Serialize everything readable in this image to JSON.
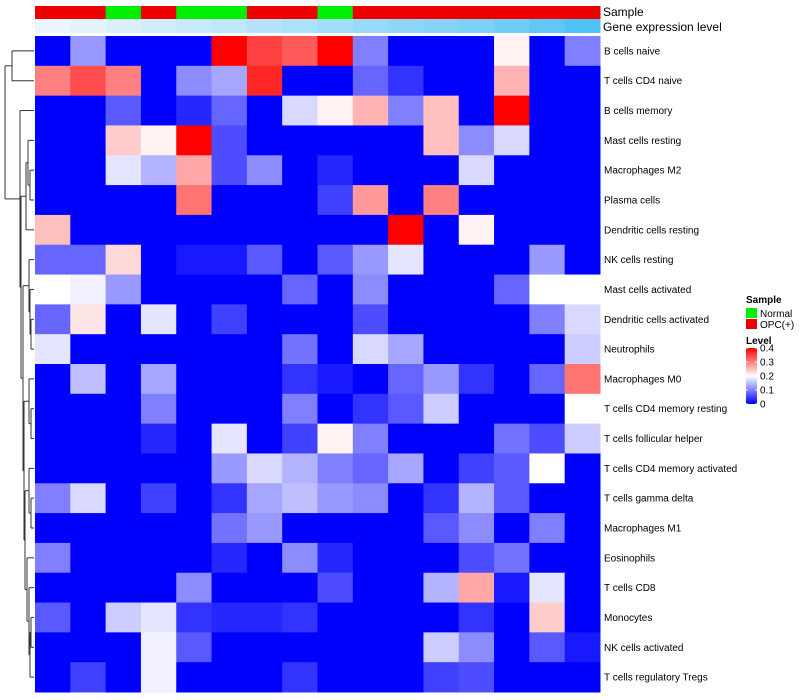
{
  "chart_data": {
    "type": "heatmap",
    "title": "",
    "annotation_labels": [
      "Sample",
      "Gene expression level"
    ],
    "rows": [
      "B cells naive",
      "T cells CD4 naive",
      "B cells memory",
      "Mast cells resting",
      "Macrophages M2",
      "Plasma cells",
      "Dendritic cells resting",
      "NK cells resting",
      "Mast cells activated",
      "Dendritic cells activated",
      "Neutrophils",
      "Macrophages M0",
      "T cells CD4 memory resting",
      "T cells follicular helper",
      "T cells CD4 memory activated",
      "T cells gamma delta",
      "Macrophages M1",
      "Eosinophils",
      "T cells CD8",
      "Monocytes",
      "NK cells activated",
      "T cells regulatory  Tregs"
    ],
    "sample_groups": [
      "OPC(+)",
      "OPC(+)",
      "Normal",
      "OPC(+)",
      "Normal",
      "Normal",
      "OPC(+)",
      "OPC(+)",
      "Normal",
      "OPC(+)",
      "OPC(+)",
      "OPC(+)",
      "OPC(+)",
      "OPC(+)",
      "OPC(+)",
      "OPC(+)"
    ],
    "gene_expression_level": [
      0.02,
      0.06,
      0.12,
      0.18,
      0.24,
      0.3,
      0.36,
      0.42,
      0.48,
      0.54,
      0.6,
      0.66,
      0.72,
      0.8,
      0.9,
      1.0
    ],
    "values": [
      [
        0,
        0.12,
        0,
        0,
        0,
        0.4,
        0.35,
        0.33,
        0.4,
        0.1,
        0,
        0,
        0,
        0.21,
        0,
        0.1
      ],
      [
        0.3,
        0.34,
        0.3,
        0,
        0.11,
        0.13,
        0.37,
        0,
        0,
        0.08,
        0.04,
        0,
        0,
        0.26,
        0,
        0
      ],
      [
        0,
        0,
        0.07,
        0,
        0.03,
        0.08,
        0,
        0.17,
        0.21,
        0.26,
        0.1,
        0.25,
        0,
        0.4,
        0,
        0
      ],
      [
        0,
        0,
        0.24,
        0.21,
        0.4,
        0.06,
        0,
        0,
        0,
        0,
        0,
        0.25,
        0.11,
        0.17,
        0,
        0
      ],
      [
        0,
        0,
        0.18,
        0.14,
        0.27,
        0.06,
        0.11,
        0,
        0.03,
        0,
        0,
        0,
        0.17,
        0,
        0,
        0
      ],
      [
        0,
        0,
        0,
        0,
        0.31,
        0,
        0,
        0,
        0.05,
        0.28,
        0,
        0.3,
        0,
        0,
        0,
        0
      ],
      [
        0.25,
        0,
        0,
        0,
        0,
        0,
        0,
        0,
        0,
        0,
        0.4,
        0,
        0.21,
        0,
        0,
        0
      ],
      [
        0.08,
        0.08,
        0.23,
        0,
        0.02,
        0.02,
        0.07,
        0,
        0.07,
        0.12,
        0.18,
        0,
        0,
        0,
        0.12,
        0
      ],
      [
        0.2,
        0.19,
        0.12,
        0,
        0,
        0,
        0,
        0.08,
        0,
        0.11,
        0,
        0,
        0,
        0.08,
        0.2,
        0.2
      ],
      [
        0.08,
        0.22,
        0,
        0.18,
        0,
        0.05,
        0,
        0,
        0,
        0.06,
        0,
        0,
        0,
        0,
        0.1,
        0.17
      ],
      [
        0.18,
        0,
        0,
        0,
        0,
        0,
        0,
        0.09,
        0,
        0.17,
        0.13,
        0,
        0,
        0,
        0,
        0.16
      ],
      [
        0,
        0.15,
        0,
        0.13,
        0,
        0,
        0,
        0.04,
        0.02,
        0,
        0.08,
        0.12,
        0.04,
        0,
        0.08,
        0.31
      ],
      [
        0,
        0,
        0,
        0.1,
        0,
        0,
        0,
        0.1,
        0,
        0.04,
        0.07,
        0.16,
        0,
        0,
        0,
        0.2
      ],
      [
        0,
        0,
        0,
        0.03,
        0,
        0.18,
        0,
        0.05,
        0.21,
        0.1,
        0,
        0,
        0,
        0.09,
        0.06,
        0.16
      ],
      [
        0,
        0,
        0,
        0,
        0,
        0.12,
        0.17,
        0.14,
        0.1,
        0.08,
        0.13,
        0,
        0.05,
        0.07,
        0.2,
        0
      ],
      [
        0.1,
        0.17,
        0,
        0.05,
        0,
        0.04,
        0.13,
        0.15,
        0.12,
        0.11,
        0,
        0.04,
        0.14,
        0.07,
        0,
        0
      ],
      [
        0,
        0,
        0,
        0,
        0,
        0.09,
        0.12,
        0,
        0,
        0,
        0,
        0.07,
        0.11,
        0,
        0.1,
        0
      ],
      [
        0.1,
        0,
        0,
        0,
        0,
        0.03,
        0,
        0.11,
        0.03,
        0,
        0,
        0,
        0.06,
        0.09,
        0,
        0
      ],
      [
        0,
        0,
        0,
        0,
        0.11,
        0,
        0,
        0,
        0.06,
        0,
        0,
        0.14,
        0.27,
        0.02,
        0.18,
        0
      ],
      [
        0.07,
        0,
        0.16,
        0.18,
        0.04,
        0.03,
        0.03,
        0.04,
        0,
        0,
        0,
        0,
        0.04,
        0,
        0.24,
        0
      ],
      [
        0,
        0,
        0,
        0.19,
        0.07,
        0,
        0,
        0,
        0,
        0,
        0,
        0.16,
        0.11,
        0,
        0.07,
        0.02
      ],
      [
        0,
        0.05,
        0,
        0.19,
        0,
        0,
        0,
        0.04,
        0,
        0,
        0,
        0.05,
        0.06,
        0,
        0,
        0
      ]
    ],
    "legend": {
      "sample_title": "Sample",
      "sample_entries": [
        {
          "label": "Normal",
          "color": "#00ee00"
        },
        {
          "label": "OPC(+)",
          "color": "#ee0000"
        }
      ],
      "level_title": "Level",
      "level_ticks": [
        "0.4",
        "0.3",
        "0.2",
        "0.1",
        "0"
      ],
      "level_tick_values": [
        0.4,
        0.3,
        0.2,
        0.1,
        0
      ],
      "vmin": 0,
      "vmax": 0.4
    },
    "colors": {
      "low": "#0000ff",
      "mid": "#ffffff",
      "high": "#ff0000",
      "anno_low": "#eef6fb",
      "anno_high": "#4fc3f7"
    }
  }
}
